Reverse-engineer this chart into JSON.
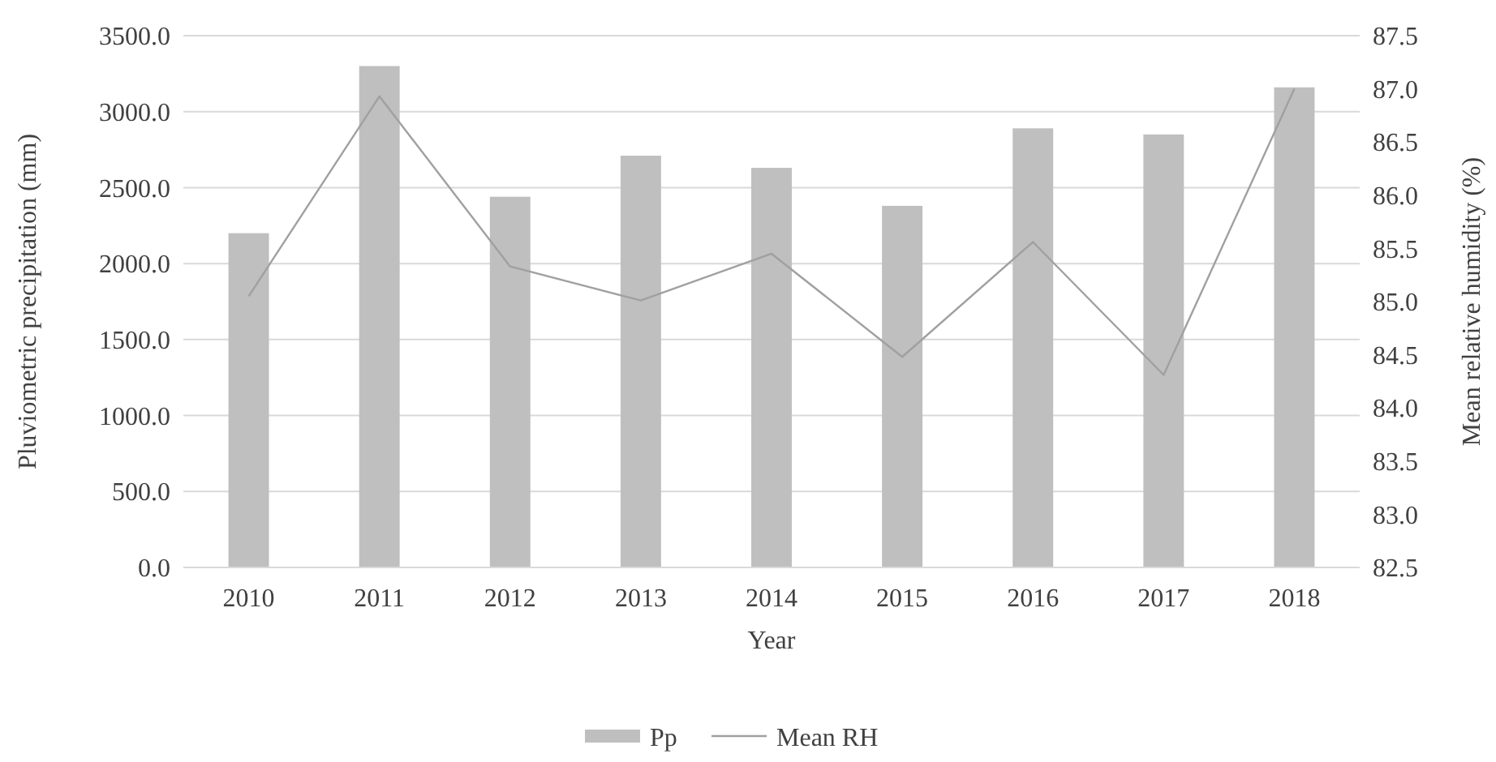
{
  "chart_data": {
    "type": "bar",
    "xlabel": "Year",
    "ylabel": "Pluviometric precipitation (mm)",
    "y2label": "Mean relative humidity (%)",
    "categories": [
      "2010",
      "2011",
      "2012",
      "2013",
      "2014",
      "2015",
      "2016",
      "2017",
      "2018"
    ],
    "series": [
      {
        "name": "Pp",
        "color": "#bfbfbf",
        "values": [
          2200,
          3300,
          2440,
          2710,
          2630,
          2380,
          2890,
          2850,
          3160
        ]
      },
      {
        "name": "Mean RH",
        "type": "line",
        "axis": "y2",
        "color": "#a0a0a0",
        "values": [
          85.05,
          86.93,
          85.33,
          85.01,
          85.45,
          84.48,
          85.56,
          84.31,
          87.0
        ]
      }
    ],
    "ylim": [
      0,
      3500
    ],
    "yticks": [
      {
        "value": 0,
        "label": "0.0"
      },
      {
        "value": 500,
        "label": "500.0"
      },
      {
        "value": 1000,
        "label": "1000.0"
      },
      {
        "value": 1500,
        "label": "1500.0"
      },
      {
        "value": 2000,
        "label": "2000.0"
      },
      {
        "value": 2500,
        "label": "2500.0"
      },
      {
        "value": 3000,
        "label": "3000.0"
      },
      {
        "value": 3500,
        "label": "3500.0"
      }
    ],
    "y2lim": [
      82.5,
      87.5
    ],
    "y2ticks": [
      82.5,
      {
        "value": 83,
        "label": "83.0"
      },
      83.5,
      {
        "value": 84,
        "label": "84.0"
      },
      84.5,
      {
        "value": 85,
        "label": "85.0"
      },
      85.5,
      {
        "value": 86,
        "label": "86.0"
      },
      86.5,
      {
        "value": 87,
        "label": "87.0"
      },
      87.5
    ],
    "grid": "y",
    "legend": "bottom"
  }
}
